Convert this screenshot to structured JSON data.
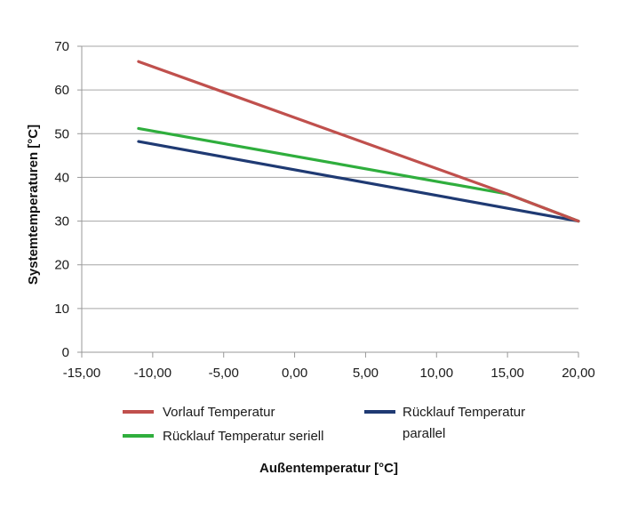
{
  "chart_data": {
    "type": "line",
    "xlabel": "Außentemperatur [°C]",
    "ylabel": "Systemtemperaturen [°C]",
    "xlim": [
      -15,
      20
    ],
    "ylim": [
      0,
      70
    ],
    "x_ticks": [
      "-15,00",
      "-10,00",
      "-5,00",
      "0,00",
      "5,00",
      "10,00",
      "15,00",
      "20,00"
    ],
    "x_tick_values": [
      -15,
      -10,
      -5,
      0,
      5,
      10,
      15,
      20
    ],
    "y_ticks": [
      "0",
      "10",
      "20",
      "30",
      "40",
      "50",
      "60",
      "70"
    ],
    "y_tick_values": [
      0,
      10,
      20,
      30,
      40,
      50,
      60,
      70
    ],
    "grid": "horizontal",
    "legend_position": "bottom",
    "series": [
      {
        "name": "Vorlauf Temperatur",
        "color": "#c0504d",
        "points": [
          [
            -11,
            66.5
          ],
          [
            15,
            36.2
          ],
          [
            20,
            30
          ]
        ]
      },
      {
        "name": "Rücklauf Temperatur seriell",
        "color": "#2fae3d",
        "points": [
          [
            -11,
            51.2
          ],
          [
            15,
            36.2
          ],
          [
            20,
            30
          ]
        ]
      },
      {
        "name": "Rücklauf Temperatur parallel",
        "name_lines": [
          "Rücklauf Temperatur",
          "parallel"
        ],
        "color": "#1f3a73",
        "points": [
          [
            -11,
            48.2
          ],
          [
            20,
            30
          ]
        ]
      }
    ]
  }
}
